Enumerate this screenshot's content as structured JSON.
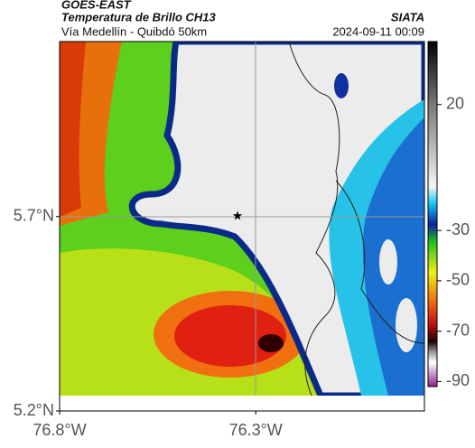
{
  "header": {
    "title": "GOES-EAST",
    "subtitle": "Temperatura de Brillo CH13",
    "route": "Vía Medellín - Quibdó 50km",
    "source": "SIATA",
    "timestamp": "2024-09-11 00:09"
  },
  "map": {
    "lonlim": [
      -76.8,
      -75.87
    ],
    "latlim": [
      5.2,
      6.15
    ],
    "lonticks": [
      {
        "value": -76.8,
        "label": "76.8°W"
      },
      {
        "value": -76.3,
        "label": "76.3°W"
      }
    ],
    "latticks": [
      {
        "value": 5.7,
        "label": "5.7°N"
      },
      {
        "value": 5.2,
        "label": "5.2°N"
      }
    ]
  },
  "colorbar": {
    "lim": [
      45,
      -92
    ],
    "ticks": [
      20,
      -30,
      -50,
      -70,
      -90
    ]
  }
}
